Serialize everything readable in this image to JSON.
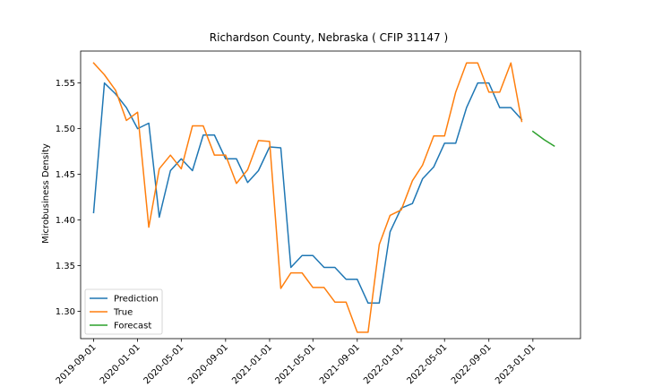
{
  "chart_data": {
    "type": "line",
    "title": "Richardson County, Nebraska ( CFIP 31147 )",
    "xlabel": "",
    "ylabel": "Microbusiness Density",
    "ylim": [
      1.27,
      1.585
    ],
    "xlim": [
      "2019-07-27",
      "2023-05-13"
    ],
    "grid": false,
    "legend_position": "lower-left",
    "x_ticks": [
      "2019-09-01",
      "2020-01-01",
      "2020-05-01",
      "2020-09-01",
      "2021-01-01",
      "2021-05-01",
      "2021-09-01",
      "2022-01-01",
      "2022-05-01",
      "2022-09-01",
      "2023-01-01"
    ],
    "y_ticks": [
      "1.30",
      "1.35",
      "1.40",
      "1.45",
      "1.50",
      "1.55"
    ],
    "series": [
      {
        "name": "Prediction",
        "color": "#1f77b4",
        "x": [
          "2019-09-01",
          "2019-10-01",
          "2019-11-01",
          "2019-12-01",
          "2020-01-01",
          "2020-02-01",
          "2020-03-01",
          "2020-04-01",
          "2020-05-01",
          "2020-06-01",
          "2020-07-01",
          "2020-08-01",
          "2020-09-01",
          "2020-10-01",
          "2020-11-01",
          "2020-12-01",
          "2021-01-01",
          "2021-02-01",
          "2021-03-01",
          "2021-04-01",
          "2021-05-01",
          "2021-06-01",
          "2021-07-01",
          "2021-08-01",
          "2021-09-01",
          "2021-10-01",
          "2021-11-01",
          "2021-12-01",
          "2022-01-01",
          "2022-02-01",
          "2022-03-01",
          "2022-04-01",
          "2022-05-01",
          "2022-06-01",
          "2022-07-01",
          "2022-08-01",
          "2022-09-01",
          "2022-10-01",
          "2022-11-01",
          "2022-12-01"
        ],
        "values": [
          1.408,
          1.55,
          1.538,
          1.523,
          1.5,
          1.506,
          1.403,
          1.454,
          1.467,
          1.454,
          1.493,
          1.493,
          1.467,
          1.467,
          1.441,
          1.454,
          1.48,
          1.479,
          1.348,
          1.361,
          1.361,
          1.348,
          1.348,
          1.335,
          1.335,
          1.309,
          1.309,
          1.387,
          1.413,
          1.418,
          1.445,
          1.458,
          1.484,
          1.484,
          1.523,
          1.55,
          1.55,
          1.523,
          1.523,
          1.51
        ]
      },
      {
        "name": "True",
        "color": "#ff7f0e",
        "x": [
          "2019-09-01",
          "2019-10-01",
          "2019-11-01",
          "2019-12-01",
          "2020-01-01",
          "2020-02-01",
          "2020-03-01",
          "2020-04-01",
          "2020-05-01",
          "2020-06-01",
          "2020-07-01",
          "2020-08-01",
          "2020-09-01",
          "2020-10-01",
          "2020-11-01",
          "2020-12-01",
          "2021-01-01",
          "2021-02-01",
          "2021-03-01",
          "2021-04-01",
          "2021-05-01",
          "2021-06-01",
          "2021-07-01",
          "2021-08-01",
          "2021-09-01",
          "2021-10-01",
          "2021-11-01",
          "2021-12-01",
          "2022-01-01",
          "2022-02-01",
          "2022-03-01",
          "2022-04-01",
          "2022-05-01",
          "2022-06-01",
          "2022-07-01",
          "2022-08-01",
          "2022-09-01",
          "2022-10-01",
          "2022-11-01",
          "2022-12-01"
        ],
        "values": [
          1.572,
          1.559,
          1.542,
          1.509,
          1.518,
          1.392,
          1.456,
          1.471,
          1.456,
          1.503,
          1.503,
          1.471,
          1.471,
          1.44,
          1.455,
          1.487,
          1.486,
          1.325,
          1.342,
          1.342,
          1.326,
          1.326,
          1.31,
          1.31,
          1.277,
          1.277,
          1.373,
          1.405,
          1.411,
          1.443,
          1.46,
          1.492,
          1.492,
          1.54,
          1.572,
          1.572,
          1.54,
          1.54,
          1.572,
          1.508
        ]
      },
      {
        "name": "Forecast",
        "color": "#2ca02c",
        "x": [
          "2023-01-01",
          "2023-02-01",
          "2023-03-01"
        ],
        "values": [
          1.497,
          1.488,
          1.481
        ]
      }
    ]
  }
}
